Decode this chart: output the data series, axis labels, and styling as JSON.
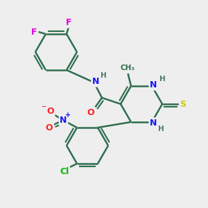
{
  "bg_color": "#eeeeee",
  "bond_color": "#2d6e4e",
  "bond_width": 1.8,
  "atom_colors": {
    "N": "#1515ff",
    "O": "#ff2020",
    "S": "#cccc00",
    "Cl": "#00bb00",
    "F": "#dd00dd",
    "H": "#4a7a6a"
  },
  "font_size": 9,
  "small_font": 7.5
}
